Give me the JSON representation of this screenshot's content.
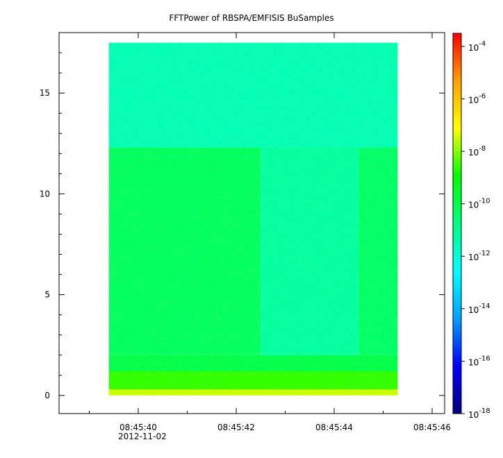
{
  "chart_data": {
    "type": "heatmap",
    "title": "FFTPower of RBSPA/EMFISIS  BuSamples",
    "xlabel": "",
    "ylabel": "",
    "x_axis": {
      "ticks": [
        "08:45:40",
        "08:45:42",
        "08:45:44",
        "08:45:46"
      ],
      "date_label": "2012-11-02",
      "data_start": "08:45:39.40",
      "data_end": "08:45:45.30"
    },
    "y_axis": {
      "range": [
        -0.9,
        18.0
      ],
      "ticks": [
        0,
        5,
        10,
        15
      ],
      "data_range": [
        0,
        17.5
      ]
    },
    "colorbar": {
      "scale": "log",
      "range": [
        -18,
        -3.5
      ],
      "ticks": [
        -18,
        -16,
        -14,
        -12,
        -10,
        -8,
        -6,
        -4
      ],
      "tick_labels": [
        {
          "base": "10",
          "exp": "-18"
        },
        {
          "base": "10",
          "exp": "-16"
        },
        {
          "base": "10",
          "exp": "-14"
        },
        {
          "base": "10",
          "exp": "-12"
        },
        {
          "base": "10",
          "exp": "-10"
        },
        {
          "base": "10",
          "exp": "-8"
        },
        {
          "base": "10",
          "exp": "-6"
        },
        {
          "base": "10",
          "exp": "-4"
        }
      ],
      "colors": [
        "#00007f",
        "#0000ff",
        "#00a0ff",
        "#00ffff",
        "#00ff80",
        "#00ff00",
        "#ffff00",
        "#ffa000",
        "#ff0000"
      ]
    },
    "field_regions": [
      {
        "x_from": "08:45:39.40",
        "x_to": "08:45:45.30",
        "y_from": 0,
        "y_to": 0.3,
        "log_power": -7.5
      },
      {
        "x_from": "08:45:39.40",
        "x_to": "08:45:45.30",
        "y_from": 0.3,
        "y_to": 1.2,
        "log_power": -8.6
      },
      {
        "x_from": "08:45:39.40",
        "x_to": "08:45:45.30",
        "y_from": 1.2,
        "y_to": 2.0,
        "log_power": -10.0
      },
      {
        "x_from": "08:45:39.40",
        "x_to": "08:45:42.50",
        "y_from": 2.0,
        "y_to": 12.3,
        "log_power": -10.3
      },
      {
        "x_from": "08:45:42.50",
        "x_to": "08:45:44.50",
        "y_from": 2.0,
        "y_to": 12.3,
        "log_power": -11.2
      },
      {
        "x_from": "08:45:44.50",
        "x_to": "08:45:45.30",
        "y_from": 2.0,
        "y_to": 12.3,
        "log_power": -10.4
      },
      {
        "x_from": "08:45:39.40",
        "x_to": "08:45:45.30",
        "y_from": 12.3,
        "y_to": 17.5,
        "log_power": -11.5
      }
    ]
  }
}
